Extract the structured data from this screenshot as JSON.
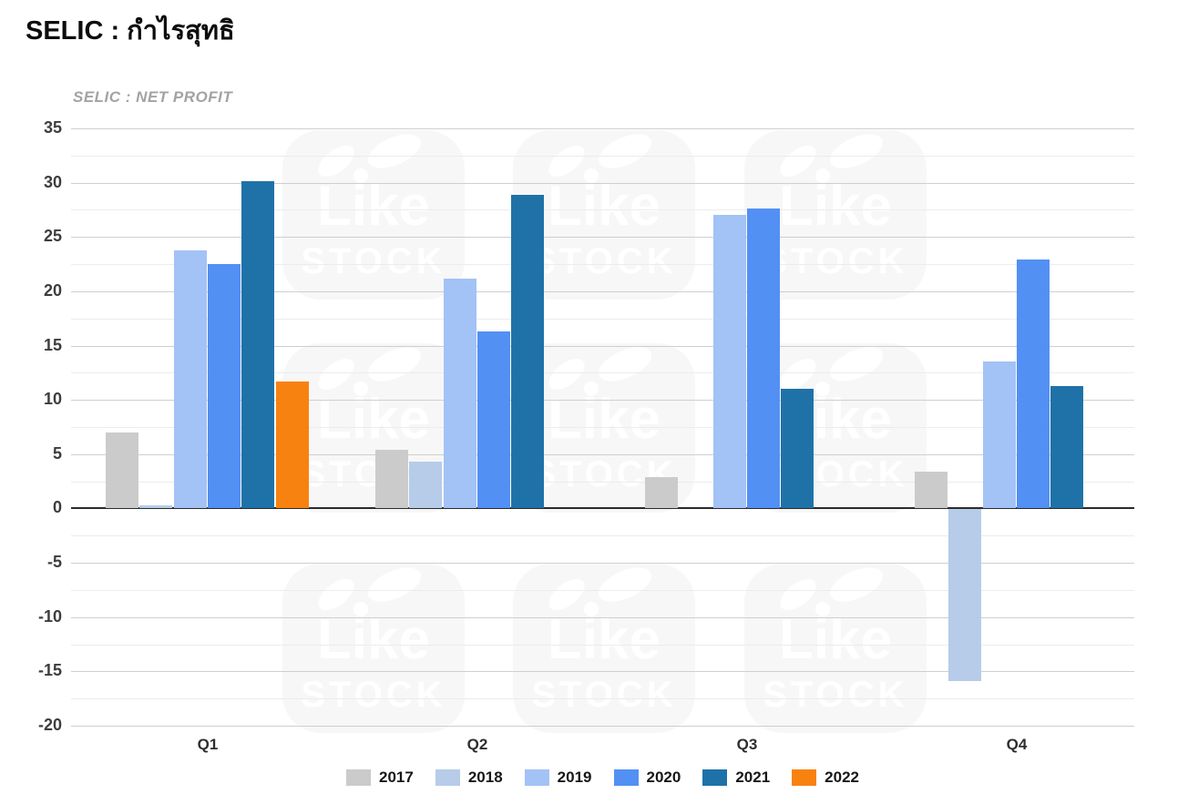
{
  "page": {
    "title": "SELIC : กำไรสุทธิ",
    "subtitle": "SELIC : NET PROFIT"
  },
  "watermark": {
    "line1": "Like",
    "line2": "STOCK",
    "tile_color": "#f7f7f7",
    "text_color": "#ffffff"
  },
  "chart_data": {
    "type": "bar",
    "title": "SELIC : NET PROFIT",
    "categories": [
      "Q1",
      "Q2",
      "Q3",
      "Q4"
    ],
    "series": [
      {
        "name": "2017",
        "color": "#cbcbcb",
        "values": [
          7.0,
          5.4,
          2.9,
          3.4
        ]
      },
      {
        "name": "2018",
        "color": "#b6cce8",
        "values": [
          0.3,
          4.3,
          null,
          -15.8
        ]
      },
      {
        "name": "2019",
        "color": "#a3c2f5",
        "values": [
          23.8,
          21.2,
          27.0,
          13.5
        ]
      },
      {
        "name": "2020",
        "color": "#5390f4",
        "values": [
          22.5,
          16.3,
          27.6,
          22.9
        ]
      },
      {
        "name": "2021",
        "color": "#1f72a8",
        "values": [
          30.1,
          28.9,
          11.0,
          11.3
        ]
      },
      {
        "name": "2022",
        "color": "#f8820f",
        "values": [
          11.7,
          null,
          null,
          null
        ]
      }
    ],
    "ylim": [
      -20,
      35
    ],
    "ytick_step": 5,
    "yminor_step": 2.5,
    "yticks": [
      35,
      30,
      25,
      20,
      15,
      10,
      5,
      0,
      -5,
      -10,
      -15,
      -20
    ],
    "grid": true,
    "legend_position": "bottom"
  }
}
